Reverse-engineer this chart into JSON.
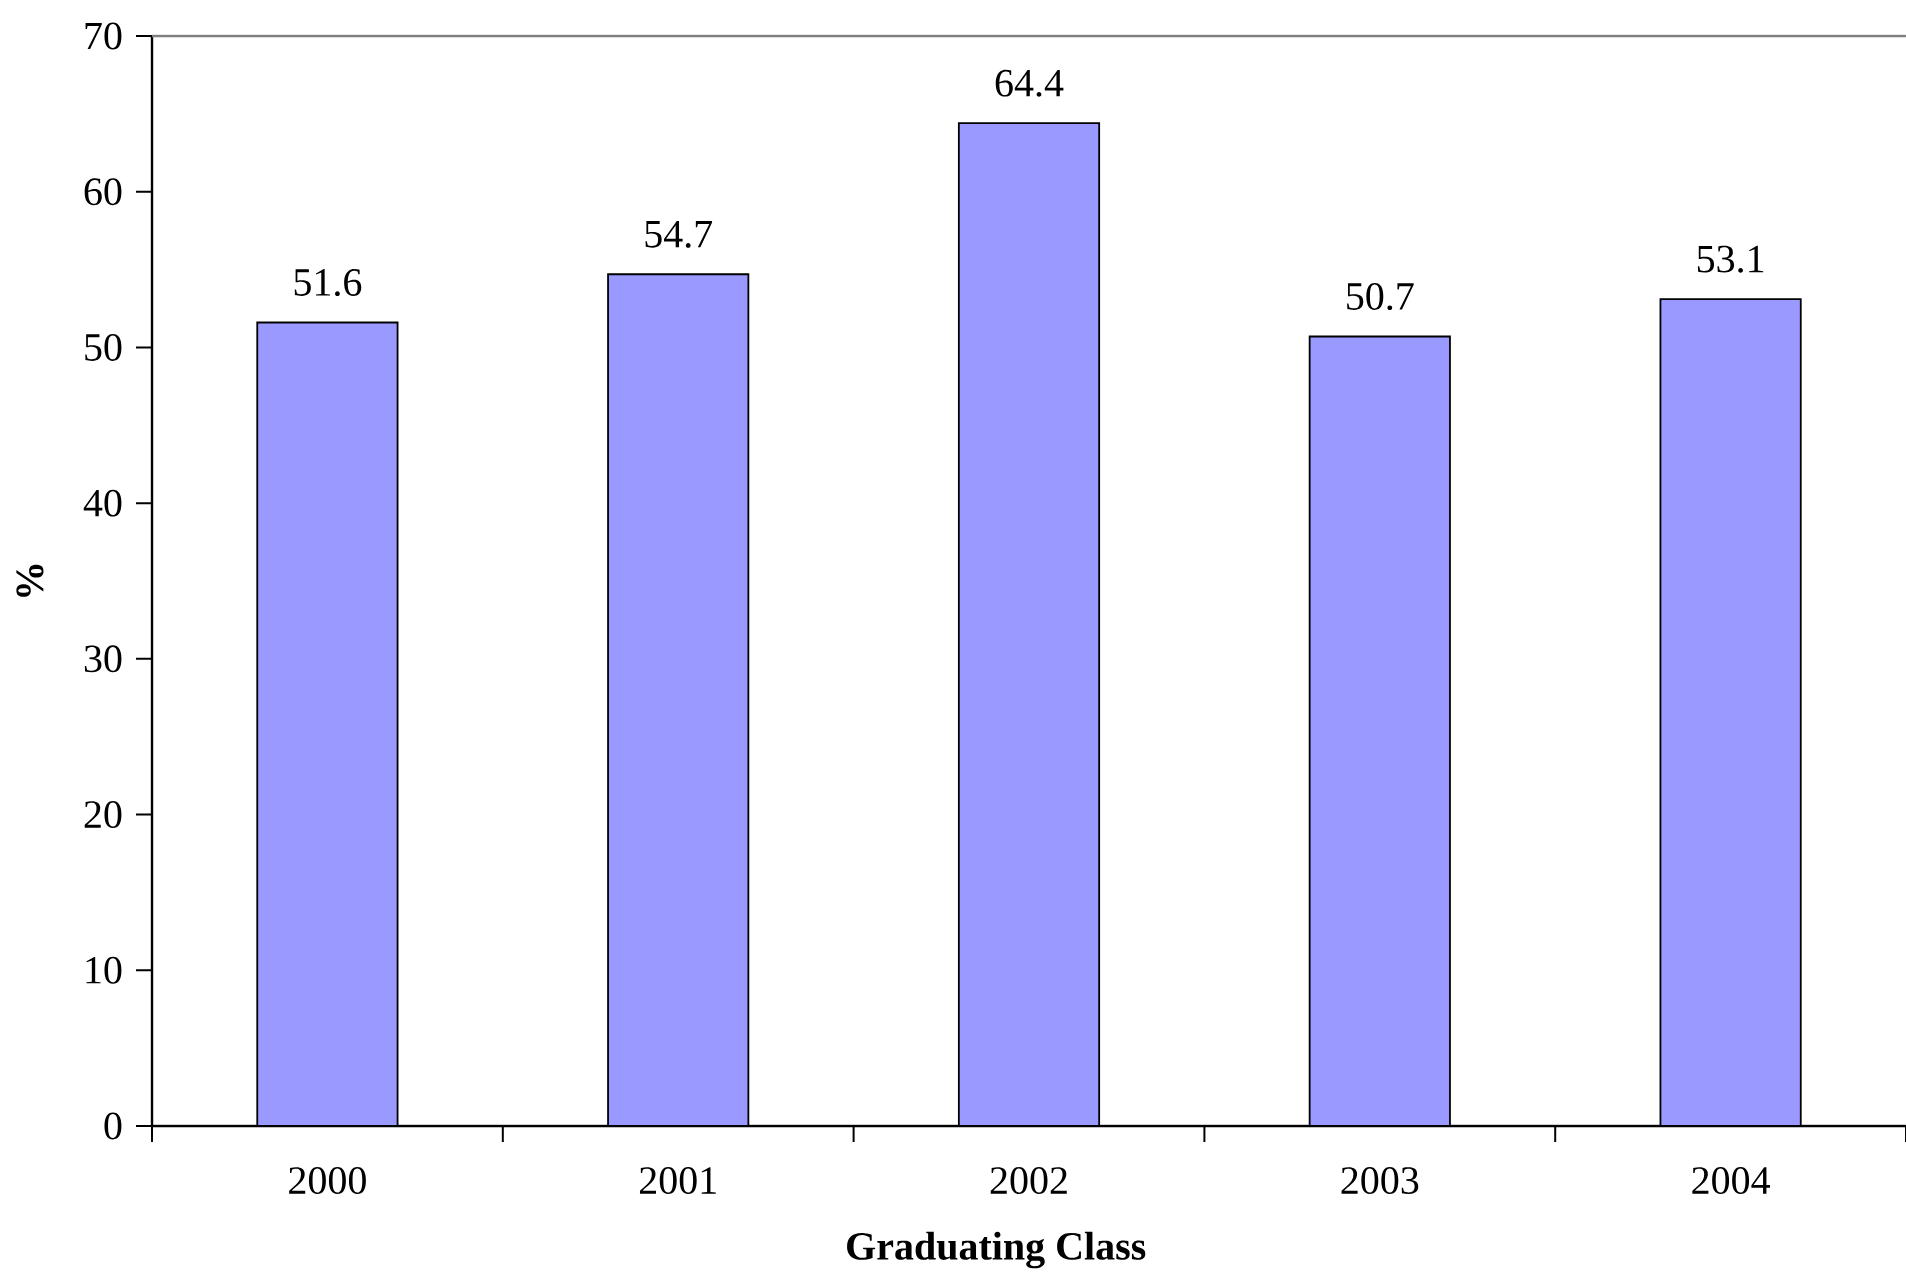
{
  "chart_data": {
    "type": "bar",
    "xlabel": "Graduating Class",
    "ylabel": "%",
    "categories": [
      "2000",
      "2001",
      "2002",
      "2003",
      "2004"
    ],
    "values": [
      51.6,
      54.7,
      64.4,
      50.7,
      53.1
    ],
    "color": "#9999ff",
    "ylim": [
      0,
      70
    ],
    "yticks": [
      0,
      10,
      20,
      30,
      40,
      50,
      60,
      70
    ],
    "data_labels": true
  }
}
